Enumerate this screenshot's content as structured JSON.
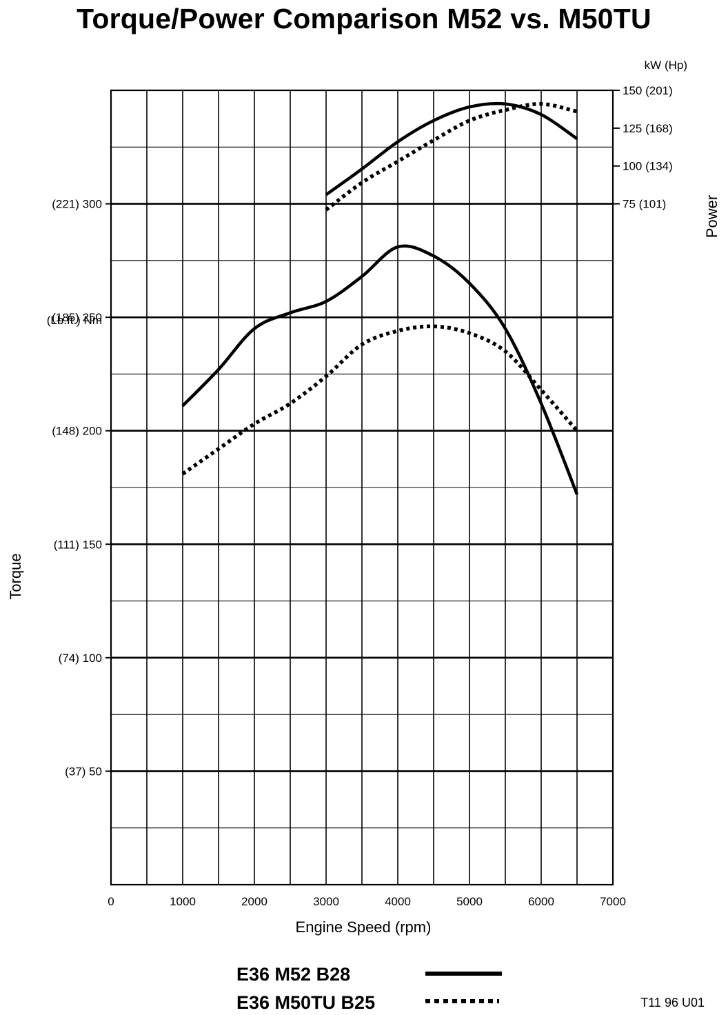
{
  "chart_data": {
    "type": "line",
    "title": "Torque/Power Comparison M52 vs. M50TU",
    "xlabel": "Engine Speed (rpm)",
    "x_ticks": [
      "0",
      "1000",
      "2000",
      "3000",
      "4000",
      "5000",
      "6000",
      "7000"
    ],
    "xlim": [
      0,
      7000
    ],
    "grid": true,
    "left_axis": {
      "label": "Torque",
      "unit": "(Lb.ft.) Nm",
      "ylim": [
        0,
        350
      ],
      "ticks": [
        {
          "value": 50,
          "label": "(37) 50"
        },
        {
          "value": 100,
          "label": "(74) 100"
        },
        {
          "value": 150,
          "label": "(111) 150"
        },
        {
          "value": 200,
          "label": "(148) 200"
        },
        {
          "value": 250,
          "label": "(185) 250"
        },
        {
          "value": 300,
          "label": "(221) 300"
        }
      ]
    },
    "right_axis": {
      "label": "Power",
      "unit": "kW  (Hp)",
      "ylim": [
        75,
        150
      ],
      "ticks": [
        {
          "value": 75,
          "label": "75 (101)"
        },
        {
          "value": 100,
          "label": "100 (134)"
        },
        {
          "value": 125,
          "label": "125 (168)"
        },
        {
          "value": 150,
          "label": "150 (201)"
        }
      ]
    },
    "legend_placement": "bottom",
    "series": [
      {
        "name": "E36 M52 B28",
        "style": "solid",
        "role": "torque",
        "x": [
          1000,
          1500,
          2000,
          2500,
          3000,
          3500,
          4000,
          4500,
          5000,
          5500,
          6000,
          6500
        ],
        "y": [
          211,
          227,
          245,
          252,
          257,
          268,
          281,
          277,
          265,
          245,
          212,
          172
        ]
      },
      {
        "name": "E36 M50TU B25",
        "style": "dashed",
        "role": "torque",
        "x": [
          1000,
          1500,
          2000,
          2500,
          3000,
          3500,
          4000,
          4500,
          5000,
          5500,
          6000,
          6500
        ],
        "y": [
          181,
          192,
          203,
          212,
          224,
          238,
          244,
          246,
          243,
          235,
          218,
          200
        ]
      },
      {
        "name": "E36 M52 B28",
        "style": "solid",
        "role": "power",
        "x": [
          3000,
          3500,
          4000,
          4500,
          5000,
          5500,
          6000,
          6500
        ],
        "y": [
          81,
          98,
          116,
          130,
          139,
          141,
          134,
          118
        ]
      },
      {
        "name": "E36 M50TU B25",
        "style": "dashed",
        "role": "power",
        "x": [
          3000,
          3500,
          4000,
          4500,
          5000,
          5500,
          6000,
          6500
        ],
        "y": [
          71,
          89,
          103,
          117,
          130,
          137,
          141,
          136
        ]
      }
    ],
    "annotations": [
      "T11 96 U01"
    ]
  },
  "legend": {
    "items": [
      {
        "label": "E36 M52 B28",
        "style": "solid"
      },
      {
        "label": "E36 M50TU B25",
        "style": "dashed"
      }
    ]
  },
  "colors": {
    "line": "#000000",
    "background": "#ffffff"
  }
}
